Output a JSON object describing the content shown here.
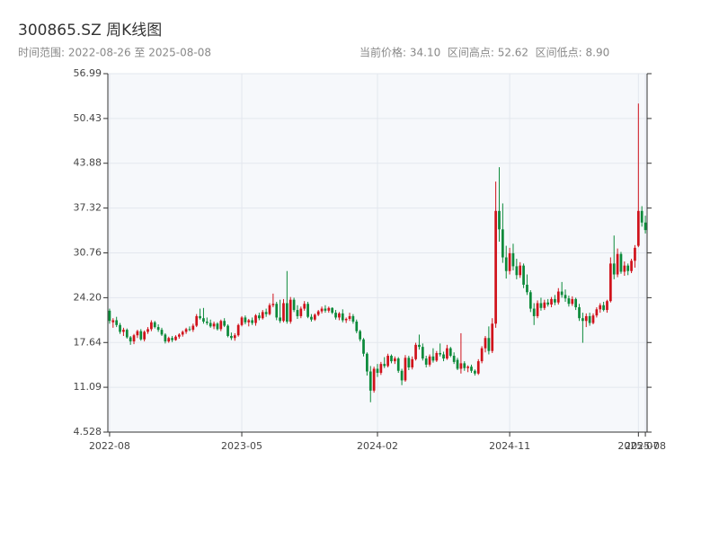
{
  "chart_data": {
    "type": "candlestick",
    "title": "300865.SZ 周K线图",
    "subtitle": "时间范围: 2022-08-26 至 2025-08-08",
    "stats": "当前价格: 34.10  区间高点: 52.62  区间低点: 8.90",
    "up_color": "#d0121b",
    "down_color": "#0b8a3a",
    "ylim": [
      4.528,
      56.99
    ],
    "yticks": [
      4.528,
      11.09,
      17.64,
      {
        "value": 24.2,
        "label": "24.20"
      },
      30.76,
      37.32,
      43.88,
      50.43,
      56.99
    ],
    "xticks": [
      {
        "value": "2022-08-26",
        "label": "2022-08"
      },
      {
        "value": "2023-05-19",
        "label": "2023-05"
      },
      {
        "value": "2024-02-16",
        "label": "2024-02"
      },
      {
        "value": "2024-11-08",
        "label": "2024-11"
      },
      {
        "value": "2025-07-25",
        "label": "2025-07"
      },
      {
        "value": "2025-08-08",
        "label": "2025-08"
      }
    ],
    "grid": true,
    "x": [
      "2022-08-26",
      "2022-09-02",
      "2022-09-09",
      "2022-09-16",
      "2022-09-23",
      "2022-09-30",
      "2022-10-07",
      "2022-10-14",
      "2022-10-21",
      "2022-10-28",
      "2022-11-04",
      "2022-11-11",
      "2022-11-18",
      "2022-11-25",
      "2022-12-02",
      "2022-12-09",
      "2022-12-16",
      "2022-12-23",
      "2022-12-30",
      "2023-01-06",
      "2023-01-13",
      "2023-01-20",
      "2023-01-27",
      "2023-02-03",
      "2023-02-10",
      "2023-02-17",
      "2023-02-24",
      "2023-03-03",
      "2023-03-10",
      "2023-03-17",
      "2023-03-24",
      "2023-03-31",
      "2023-04-07",
      "2023-04-14",
      "2023-04-21",
      "2023-04-28",
      "2023-05-05",
      "2023-05-12",
      "2023-05-19",
      "2023-05-26",
      "2023-06-02",
      "2023-06-09",
      "2023-06-16",
      "2023-06-23",
      "2023-06-30",
      "2023-07-07",
      "2023-07-14",
      "2023-07-21",
      "2023-07-28",
      "2023-08-04",
      "2023-08-11",
      "2023-08-18",
      "2023-08-25",
      "2023-09-01",
      "2023-09-08",
      "2023-09-15",
      "2023-09-22",
      "2023-09-29",
      "2023-10-06",
      "2023-10-13",
      "2023-10-20",
      "2023-10-27",
      "2023-11-03",
      "2023-11-10",
      "2023-11-17",
      "2023-11-24",
      "2023-12-01",
      "2023-12-08",
      "2023-12-15",
      "2023-12-22",
      "2023-12-29",
      "2024-01-05",
      "2024-01-12",
      "2024-01-19",
      "2024-01-26",
      "2024-02-02",
      "2024-02-09",
      "2024-02-16",
      "2024-02-23",
      "2024-03-01",
      "2024-03-08",
      "2024-03-15",
      "2024-03-22",
      "2024-03-29",
      "2024-04-05",
      "2024-04-12",
      "2024-04-19",
      "2024-04-26",
      "2024-05-03",
      "2024-05-10",
      "2024-05-17",
      "2024-05-24",
      "2024-05-31",
      "2024-06-07",
      "2024-06-14",
      "2024-06-21",
      "2024-06-28",
      "2024-07-05",
      "2024-07-12",
      "2024-07-19",
      "2024-07-26",
      "2024-08-02",
      "2024-08-09",
      "2024-08-16",
      "2024-08-23",
      "2024-08-30",
      "2024-09-06",
      "2024-09-13",
      "2024-09-20",
      "2024-09-27",
      "2024-10-04",
      "2024-10-11",
      "2024-10-18",
      "2024-10-25",
      "2024-11-01",
      "2024-11-08",
      "2024-11-15",
      "2024-11-22",
      "2024-11-29",
      "2024-12-06",
      "2024-12-13",
      "2024-12-20",
      "2024-12-27",
      "2025-01-03",
      "2025-01-10",
      "2025-01-17",
      "2025-01-24",
      "2025-01-31",
      "2025-02-07",
      "2025-02-14",
      "2025-02-21",
      "2025-02-28",
      "2025-03-07",
      "2025-03-14",
      "2025-03-21",
      "2025-03-28",
      "2025-04-04",
      "2025-04-11",
      "2025-04-18",
      "2025-04-25",
      "2025-05-02",
      "2025-05-09",
      "2025-05-16",
      "2025-05-23",
      "2025-05-30",
      "2025-06-06",
      "2025-06-13",
      "2025-06-20",
      "2025-06-27",
      "2025-07-04",
      "2025-07-11",
      "2025-07-18",
      "2025-07-25",
      "2025-08-01",
      "2025-08-08"
    ],
    "ohlc": [
      [
        22.3,
        22.6,
        20.4,
        20.8
      ],
      [
        20.6,
        21.2,
        19.8,
        20.9
      ],
      [
        20.9,
        21.4,
        19.9,
        20.2
      ],
      [
        20.2,
        20.5,
        18.9,
        19.2
      ],
      [
        19.2,
        19.8,
        18.6,
        19.5
      ],
      [
        19.5,
        19.7,
        18.2,
        18.4
      ],
      [
        18.4,
        18.6,
        17.3,
        17.8
      ],
      [
        17.8,
        18.9,
        17.4,
        18.7
      ],
      [
        18.7,
        19.5,
        18.3,
        19.3
      ],
      [
        19.3,
        19.6,
        17.9,
        18.1
      ],
      [
        18.1,
        19.4,
        17.8,
        19.2
      ],
      [
        19.2,
        19.9,
        18.9,
        19.6
      ],
      [
        19.6,
        20.9,
        19.3,
        20.6
      ],
      [
        20.6,
        20.8,
        19.7,
        19.9
      ],
      [
        19.9,
        20.3,
        19.2,
        19.5
      ],
      [
        19.5,
        19.8,
        18.6,
        18.8
      ],
      [
        18.8,
        19.0,
        17.5,
        17.8
      ],
      [
        17.8,
        18.5,
        17.6,
        18.3
      ],
      [
        18.3,
        18.6,
        17.7,
        18.0
      ],
      [
        18.0,
        18.7,
        17.9,
        18.5
      ],
      [
        18.5,
        19.0,
        18.2,
        18.8
      ],
      [
        18.8,
        19.4,
        18.5,
        19.2
      ],
      [
        19.2,
        19.8,
        18.9,
        19.6
      ],
      [
        19.6,
        20.0,
        19.3,
        19.5
      ],
      [
        19.5,
        20.4,
        19.2,
        20.1
      ],
      [
        20.1,
        21.8,
        19.9,
        21.5
      ],
      [
        21.5,
        22.6,
        21.0,
        21.2
      ],
      [
        21.2,
        22.7,
        20.4,
        20.7
      ],
      [
        20.7,
        21.3,
        20.2,
        20.5
      ],
      [
        20.5,
        21.0,
        19.8,
        20.0
      ],
      [
        20.0,
        20.7,
        19.6,
        20.4
      ],
      [
        20.4,
        20.6,
        19.4,
        19.6
      ],
      [
        19.6,
        21.0,
        19.3,
        20.8
      ],
      [
        20.8,
        21.2,
        19.9,
        20.1
      ],
      [
        20.1,
        20.3,
        18.4,
        18.6
      ],
      [
        18.6,
        19.1,
        18.0,
        18.3
      ],
      [
        18.3,
        19.0,
        17.9,
        18.7
      ],
      [
        18.7,
        20.4,
        18.5,
        20.2
      ],
      [
        20.2,
        21.5,
        20.0,
        21.3
      ],
      [
        21.3,
        21.6,
        20.3,
        20.6
      ],
      [
        20.6,
        21.1,
        20.0,
        20.9
      ],
      [
        20.9,
        21.3,
        20.2,
        20.5
      ],
      [
        20.5,
        21.8,
        20.1,
        21.6
      ],
      [
        21.6,
        22.0,
        20.9,
        21.2
      ],
      [
        21.2,
        22.4,
        21.0,
        22.1
      ],
      [
        22.1,
        22.6,
        21.4,
        21.8
      ],
      [
        21.8,
        23.4,
        21.6,
        23.1
      ],
      [
        23.1,
        24.8,
        22.8,
        23.3
      ],
      [
        23.3,
        23.6,
        20.9,
        21.3
      ],
      [
        21.3,
        23.9,
        20.5,
        20.8
      ],
      [
        20.8,
        24.0,
        20.6,
        23.4
      ],
      [
        23.4,
        28.1,
        20.4,
        20.7
      ],
      [
        20.7,
        24.3,
        20.4,
        23.9
      ],
      [
        23.9,
        24.2,
        22.1,
        22.4
      ],
      [
        22.4,
        23.1,
        21.1,
        21.5
      ],
      [
        21.5,
        22.9,
        21.2,
        22.6
      ],
      [
        22.6,
        23.7,
        22.3,
        23.3
      ],
      [
        23.3,
        23.6,
        21.2,
        21.4
      ],
      [
        21.4,
        21.8,
        20.7,
        21.0
      ],
      [
        21.0,
        21.9,
        20.8,
        21.7
      ],
      [
        21.7,
        22.4,
        21.5,
        22.2
      ],
      [
        22.2,
        22.9,
        21.9,
        22.6
      ],
      [
        22.6,
        23.1,
        22.0,
        22.3
      ],
      [
        22.3,
        22.9,
        22.0,
        22.7
      ],
      [
        22.7,
        22.8,
        21.8,
        22.0
      ],
      [
        22.0,
        22.4,
        21.0,
        21.3
      ],
      [
        21.3,
        22.1,
        20.9,
        21.9
      ],
      [
        21.9,
        22.5,
        20.6,
        20.9
      ],
      [
        20.9,
        21.3,
        20.5,
        21.1
      ],
      [
        21.1,
        22.0,
        20.8,
        21.5
      ],
      [
        21.5,
        21.8,
        20.4,
        20.7
      ],
      [
        20.7,
        21.0,
        19.0,
        19.3
      ],
      [
        19.3,
        19.5,
        17.8,
        18.1
      ],
      [
        18.1,
        18.3,
        15.6,
        16.0
      ],
      [
        16.0,
        16.2,
        12.8,
        13.4
      ],
      [
        13.4,
        14.2,
        8.9,
        10.6
      ],
      [
        10.6,
        14.1,
        10.3,
        13.8
      ],
      [
        13.8,
        14.5,
        12.6,
        13.2
      ],
      [
        13.2,
        14.8,
        12.9,
        14.5
      ],
      [
        14.5,
        15.5,
        13.9,
        14.2
      ],
      [
        14.2,
        16.0,
        14.0,
        15.7
      ],
      [
        15.7,
        15.9,
        14.6,
        14.9
      ],
      [
        14.9,
        15.6,
        14.5,
        15.3
      ],
      [
        15.3,
        15.5,
        13.2,
        13.5
      ],
      [
        13.5,
        13.8,
        11.4,
        12.1
      ],
      [
        12.1,
        15.8,
        11.9,
        15.4
      ],
      [
        15.4,
        15.7,
        13.6,
        14.0
      ],
      [
        14.0,
        15.6,
        13.7,
        15.2
      ],
      [
        15.2,
        17.6,
        15.0,
        17.3
      ],
      [
        17.3,
        18.8,
        16.6,
        17.0
      ],
      [
        17.0,
        17.5,
        15.0,
        15.3
      ],
      [
        15.3,
        15.7,
        14.0,
        14.4
      ],
      [
        14.4,
        15.9,
        14.1,
        15.6
      ],
      [
        15.6,
        16.8,
        14.7,
        15.0
      ],
      [
        15.0,
        16.4,
        14.8,
        16.1
      ],
      [
        16.1,
        17.5,
        15.6,
        15.9
      ],
      [
        15.9,
        16.3,
        14.9,
        15.3
      ],
      [
        15.3,
        17.3,
        15.1,
        16.8
      ],
      [
        16.8,
        17.0,
        15.5,
        15.7
      ],
      [
        15.7,
        16.2,
        14.5,
        14.8
      ],
      [
        15.1,
        15.4,
        13.6,
        13.8
      ],
      [
        13.8,
        19.0,
        13.1,
        14.6
      ],
      [
        14.6,
        14.9,
        13.5,
        13.9
      ],
      [
        13.9,
        14.3,
        13.3,
        14.1
      ],
      [
        14.1,
        14.4,
        13.2,
        13.5
      ],
      [
        13.5,
        13.7,
        12.8,
        13.1
      ],
      [
        13.1,
        15.2,
        12.9,
        14.9
      ],
      [
        14.9,
        17.1,
        14.6,
        16.8
      ],
      [
        16.8,
        18.6,
        16.2,
        18.3
      ],
      [
        18.3,
        20.0,
        15.9,
        16.4
      ],
      [
        16.4,
        21.2,
        16.1,
        20.4
      ],
      [
        20.4,
        41.2,
        19.8,
        36.9
      ],
      [
        36.9,
        43.3,
        32.4,
        34.2
      ],
      [
        34.2,
        38.0,
        29.3,
        30.1
      ],
      [
        30.1,
        31.8,
        27.0,
        28.1
      ],
      [
        28.1,
        31.5,
        27.6,
        30.7
      ],
      [
        30.7,
        32.1,
        28.2,
        28.8
      ],
      [
        28.8,
        29.9,
        26.9,
        27.5
      ],
      [
        27.5,
        29.4,
        27.1,
        28.9
      ],
      [
        28.9,
        29.2,
        25.6,
        26.1
      ],
      [
        26.1,
        27.6,
        24.6,
        25.0
      ],
      [
        25.0,
        25.3,
        22.1,
        22.6
      ],
      [
        22.6,
        23.4,
        20.2,
        21.5
      ],
      [
        21.5,
        23.8,
        21.2,
        23.4
      ],
      [
        23.4,
        24.2,
        22.3,
        22.7
      ],
      [
        22.7,
        23.9,
        22.4,
        23.5
      ],
      [
        23.5,
        24.0,
        22.9,
        23.2
      ],
      [
        23.2,
        24.3,
        22.8,
        24.0
      ],
      [
        24.0,
        24.6,
        23.1,
        23.5
      ],
      [
        23.5,
        25.6,
        23.2,
        25.1
      ],
      [
        25.1,
        26.5,
        24.2,
        24.6
      ],
      [
        24.6,
        25.4,
        23.6,
        24.1
      ],
      [
        24.1,
        24.5,
        22.9,
        23.3
      ],
      [
        23.3,
        24.4,
        23.0,
        24.0
      ],
      [
        24.0,
        24.2,
        22.4,
        22.8
      ],
      [
        22.8,
        23.3,
        20.8,
        21.2
      ],
      [
        21.2,
        22.0,
        17.6,
        20.8
      ],
      [
        20.8,
        21.9,
        19.9,
        21.5
      ],
      [
        21.5,
        22.0,
        20.1,
        20.5
      ],
      [
        20.5,
        21.9,
        20.3,
        21.6
      ],
      [
        21.6,
        22.8,
        21.3,
        22.5
      ],
      [
        22.5,
        23.4,
        22.0,
        23.1
      ],
      [
        23.1,
        23.6,
        22.2,
        22.4
      ],
      [
        22.4,
        23.9,
        22.0,
        23.7
      ],
      [
        23.7,
        30.1,
        23.5,
        29.2
      ],
      [
        29.2,
        33.3,
        26.9,
        27.6
      ],
      [
        27.6,
        31.4,
        27.2,
        30.6
      ],
      [
        30.6,
        30.9,
        27.7,
        28.0
      ],
      [
        28.0,
        29.5,
        27.4,
        28.9
      ],
      [
        28.9,
        29.2,
        27.5,
        28.1
      ],
      [
        28.1,
        29.9,
        27.8,
        29.6
      ],
      [
        29.6,
        31.9,
        28.6,
        31.5
      ],
      [
        31.8,
        52.62,
        31.6,
        36.9
      ],
      [
        36.9,
        37.6,
        34.6,
        35.2
      ],
      [
        35.2,
        36.2,
        33.6,
        34.1
      ]
    ]
  }
}
